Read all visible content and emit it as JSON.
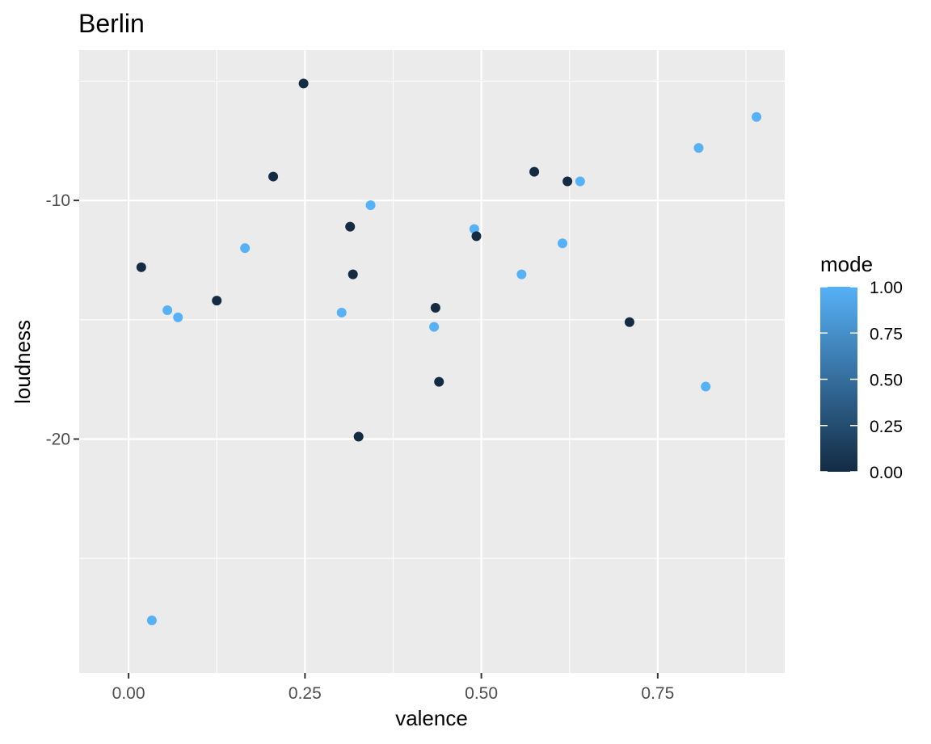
{
  "chart_data": {
    "type": "scatter",
    "title": "Berlin",
    "xlabel": "valence",
    "ylabel": "loudness",
    "xlim": [
      -0.07,
      0.93
    ],
    "ylim": [
      -29.8,
      -3.7
    ],
    "x_ticks": [
      0.0,
      0.25,
      0.5,
      0.75
    ],
    "x_tick_labels": [
      "0.00",
      "0.25",
      "0.50",
      "0.75"
    ],
    "y_ticks": [
      -10,
      -20
    ],
    "y_tick_labels": [
      "-10",
      "-20"
    ],
    "grid": true,
    "legend": {
      "title": "mode",
      "placement": "right",
      "type": "colorbar",
      "range": [
        0.0,
        1.0
      ],
      "ticks": [
        0.0,
        0.25,
        0.5,
        0.75,
        1.0
      ],
      "tick_labels": [
        "0.00",
        "0.25",
        "0.50",
        "0.75",
        "1.00"
      ],
      "low_color": "#132B43",
      "high_color": "#56B1F7"
    },
    "points": [
      {
        "x": 0.018,
        "y": -12.8,
        "mode": 0
      },
      {
        "x": 0.033,
        "y": -27.6,
        "mode": 1
      },
      {
        "x": 0.055,
        "y": -14.6,
        "mode": 1
      },
      {
        "x": 0.07,
        "y": -14.9,
        "mode": 1
      },
      {
        "x": 0.125,
        "y": -14.2,
        "mode": 0
      },
      {
        "x": 0.165,
        "y": -12.0,
        "mode": 1
      },
      {
        "x": 0.205,
        "y": -9.0,
        "mode": 0
      },
      {
        "x": 0.248,
        "y": -5.1,
        "mode": 0
      },
      {
        "x": 0.302,
        "y": -14.7,
        "mode": 1
      },
      {
        "x": 0.314,
        "y": -11.1,
        "mode": 0
      },
      {
        "x": 0.318,
        "y": -13.1,
        "mode": 0
      },
      {
        "x": 0.326,
        "y": -19.9,
        "mode": 0
      },
      {
        "x": 0.343,
        "y": -10.2,
        "mode": 1
      },
      {
        "x": 0.433,
        "y": -15.3,
        "mode": 1
      },
      {
        "x": 0.435,
        "y": -14.5,
        "mode": 0
      },
      {
        "x": 0.44,
        "y": -17.6,
        "mode": 0
      },
      {
        "x": 0.49,
        "y": -11.2,
        "mode": 1
      },
      {
        "x": 0.493,
        "y": -11.5,
        "mode": 0
      },
      {
        "x": 0.557,
        "y": -13.1,
        "mode": 1
      },
      {
        "x": 0.575,
        "y": -8.8,
        "mode": 0
      },
      {
        "x": 0.615,
        "y": -11.8,
        "mode": 1
      },
      {
        "x": 0.622,
        "y": -9.2,
        "mode": 0
      },
      {
        "x": 0.64,
        "y": -9.2,
        "mode": 1
      },
      {
        "x": 0.71,
        "y": -15.1,
        "mode": 0
      },
      {
        "x": 0.808,
        "y": -7.8,
        "mode": 1
      },
      {
        "x": 0.818,
        "y": -17.8,
        "mode": 1
      },
      {
        "x": 0.89,
        "y": -6.5,
        "mode": 1
      }
    ]
  }
}
